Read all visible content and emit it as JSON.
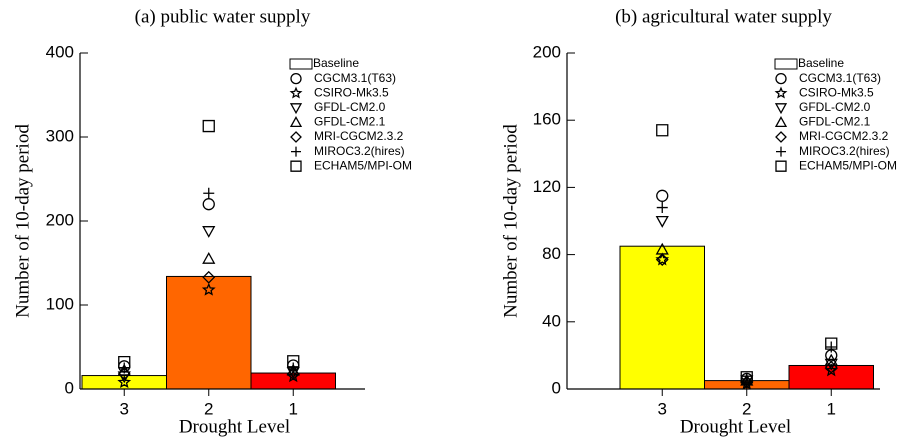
{
  "chart_data": [
    {
      "type": "bar",
      "title": "(a) public water supply",
      "ylabel": "Number of 10-day period",
      "xlabel": "Drought Level",
      "categories": [
        "3",
        "2",
        "1"
      ],
      "bars": {
        "name": "Baseline",
        "values": [
          16,
          134,
          19
        ],
        "colors": [
          "#ffff00",
          "#ff6600",
          "#ff0000"
        ]
      },
      "series": [
        {
          "name": "CGCM3.1(T63)",
          "marker": "circle",
          "values": [
            27,
            220,
            28
          ]
        },
        {
          "name": "CSIRO-Mk3.5",
          "marker": "star",
          "values": [
            8,
            118,
            15
          ]
        },
        {
          "name": "GFDL-CM2.0",
          "marker": "triangle-down",
          "values": [
            15,
            188,
            20
          ]
        },
        {
          "name": "GFDL-CM2.1",
          "marker": "triangle-up",
          "values": [
            22,
            155,
            22
          ]
        },
        {
          "name": "MRI-CGCM2.3.2",
          "marker": "diamond",
          "values": [
            18,
            133,
            18
          ]
        },
        {
          "name": "MIROC3.2(hires)",
          "marker": "plus",
          "values": [
            25,
            233,
            25
          ]
        },
        {
          "name": "ECHAM5/MPI-OM",
          "marker": "square",
          "values": [
            32,
            313,
            33
          ]
        }
      ],
      "ylim": [
        0,
        400
      ],
      "yticks": [
        0,
        100,
        200,
        300,
        400
      ]
    },
    {
      "type": "bar",
      "title": "(b) agricultural water supply",
      "ylabel": "Number of 10-day period",
      "xlabel": "Drought Level",
      "categories": [
        "3",
        "2",
        "1"
      ],
      "bars": {
        "name": "Baseline",
        "values": [
          85,
          5,
          14
        ],
        "colors": [
          "#ffff00",
          "#ff6600",
          "#ff0000"
        ]
      },
      "series": [
        {
          "name": "CGCM3.1(T63)",
          "marker": "circle",
          "values": [
            115,
            6,
            20
          ]
        },
        {
          "name": "CSIRO-Mk3.5",
          "marker": "star",
          "values": [
            77,
            3,
            11
          ]
        },
        {
          "name": "GFDL-CM2.0",
          "marker": "triangle-down",
          "values": [
            100,
            5,
            15
          ]
        },
        {
          "name": "GFDL-CM2.1",
          "marker": "triangle-up",
          "values": [
            83,
            5,
            17
          ]
        },
        {
          "name": "MRI-CGCM2.3.2",
          "marker": "diamond",
          "values": [
            77,
            4,
            13
          ]
        },
        {
          "name": "MIROC3.2(hires)",
          "marker": "plus",
          "values": [
            108,
            6,
            25
          ]
        },
        {
          "name": "ECHAM5/MPI-OM",
          "marker": "square",
          "values": [
            154,
            7,
            27
          ]
        }
      ],
      "ylim": [
        0,
        200
      ],
      "yticks": [
        0,
        40,
        80,
        120,
        160,
        200
      ]
    }
  ]
}
